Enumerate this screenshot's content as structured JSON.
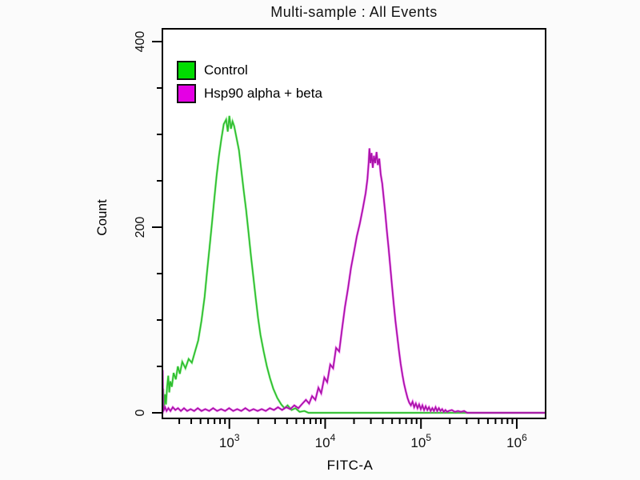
{
  "chart_data": {
    "type": "line",
    "subtype": "flow-cytometry-overlay-histogram",
    "title": "Multi-sample : All Events",
    "xlabel": "FITC-A",
    "ylabel": "Count",
    "x_scale": "log10",
    "x_range": [
      200,
      2000000
    ],
    "y_range": [
      0,
      400
    ],
    "y_major_ticks": [
      0,
      200,
      400
    ],
    "y_minor_step": 50,
    "x_decade_exponents": [
      3,
      4,
      5,
      6
    ],
    "grid": false,
    "legend_position": "top-left-inside",
    "frame_color": "#000000",
    "series": [
      {
        "name": "Control",
        "swatch": "#00DC00",
        "swatch_border": "#111111",
        "stroke": "#2EBD2E",
        "highlight": "#6BEE6B",
        "points": [
          [
            200,
            2
          ],
          [
            204,
            26
          ],
          [
            208,
            6
          ],
          [
            213,
            20
          ],
          [
            218,
            9
          ],
          [
            224,
            28
          ],
          [
            230,
            40
          ],
          [
            236,
            22
          ],
          [
            242,
            34
          ],
          [
            251,
            28
          ],
          [
            262,
            43
          ],
          [
            276,
            36
          ],
          [
            290,
            50
          ],
          [
            304,
            42
          ],
          [
            322,
            55
          ],
          [
            348,
            48
          ],
          [
            376,
            58
          ],
          [
            406,
            54
          ],
          [
            438,
            66
          ],
          [
            473,
            78
          ],
          [
            511,
            99
          ],
          [
            552,
            125
          ],
          [
            584,
            151
          ],
          [
            619,
            177
          ],
          [
            656,
            203
          ],
          [
            694,
            229
          ],
          [
            735,
            255
          ],
          [
            779,
            277
          ],
          [
            825,
            295
          ],
          [
            874,
            311
          ],
          [
            926,
            316
          ],
          [
            962,
            303
          ],
          [
            1000,
            320
          ],
          [
            1040,
            306
          ],
          [
            1080,
            314
          ],
          [
            1122,
            309
          ],
          [
            1189,
            296
          ],
          [
            1259,
            283
          ],
          [
            1334,
            261
          ],
          [
            1413,
            239
          ],
          [
            1496,
            219
          ],
          [
            1585,
            194
          ],
          [
            1679,
            169
          ],
          [
            1778,
            147
          ],
          [
            1884,
            124
          ],
          [
            1995,
            102
          ],
          [
            2113,
            84
          ],
          [
            2282,
            66
          ],
          [
            2464,
            50
          ],
          [
            2661,
            37
          ],
          [
            2873,
            26
          ],
          [
            3162,
            16
          ],
          [
            3481,
            9
          ],
          [
            3758,
            5
          ],
          [
            4058,
            8
          ],
          [
            4467,
            3
          ],
          [
            4898,
            5
          ],
          [
            5413,
            1
          ],
          [
            6070,
            2
          ],
          [
            6700,
            0
          ],
          [
            2000000,
            0
          ]
        ]
      },
      {
        "name": "Hsp90 alpha + beta",
        "swatch": "#E400E4",
        "swatch_border": "#111111",
        "stroke": "#A912A9",
        "highlight": "#EE2EEE",
        "points": [
          [
            200,
            1
          ],
          [
            201,
            46
          ],
          [
            203,
            8
          ],
          [
            207,
            3
          ],
          [
            213,
            6
          ],
          [
            221,
            2
          ],
          [
            231,
            5
          ],
          [
            243,
            2
          ],
          [
            257,
            6
          ],
          [
            273,
            3
          ],
          [
            291,
            5
          ],
          [
            312,
            2
          ],
          [
            336,
            5
          ],
          [
            363,
            2
          ],
          [
            394,
            4
          ],
          [
            429,
            2
          ],
          [
            468,
            5
          ],
          [
            512,
            2
          ],
          [
            561,
            4
          ],
          [
            616,
            2
          ],
          [
            677,
            5
          ],
          [
            745,
            2
          ],
          [
            820,
            4
          ],
          [
            903,
            2
          ],
          [
            995,
            5
          ],
          [
            1096,
            2
          ],
          [
            1208,
            4
          ],
          [
            1332,
            2
          ],
          [
            1469,
            5
          ],
          [
            1620,
            2
          ],
          [
            1787,
            4
          ],
          [
            1971,
            2
          ],
          [
            2174,
            4
          ],
          [
            2398,
            2
          ],
          [
            2645,
            5
          ],
          [
            2918,
            3
          ],
          [
            3219,
            6
          ],
          [
            3551,
            3
          ],
          [
            3917,
            6
          ],
          [
            4321,
            4
          ],
          [
            4767,
            8
          ],
          [
            5258,
            5
          ],
          [
            5800,
            10
          ],
          [
            6300,
            14
          ],
          [
            6800,
            10
          ],
          [
            7300,
            18
          ],
          [
            7900,
            14
          ],
          [
            8500,
            27
          ],
          [
            9100,
            21
          ],
          [
            9800,
            38
          ],
          [
            10500,
            33
          ],
          [
            11300,
            52
          ],
          [
            12100,
            48
          ],
          [
            13000,
            70
          ],
          [
            14000,
            66
          ],
          [
            15000,
            90
          ],
          [
            16100,
            114
          ],
          [
            17300,
            134
          ],
          [
            18600,
            156
          ],
          [
            19900,
            172
          ],
          [
            21400,
            190
          ],
          [
            23000,
            204
          ],
          [
            24700,
            220
          ],
          [
            26500,
            237
          ],
          [
            27600,
            252
          ],
          [
            28400,
            268
          ],
          [
            29000,
            285
          ],
          [
            29700,
            269
          ],
          [
            30500,
            280
          ],
          [
            31400,
            264
          ],
          [
            32300,
            277
          ],
          [
            33300,
            269
          ],
          [
            34400,
            281
          ],
          [
            35500,
            267
          ],
          [
            36700,
            274
          ],
          [
            38000,
            257
          ],
          [
            39400,
            247
          ],
          [
            40900,
            231
          ],
          [
            42500,
            214
          ],
          [
            44200,
            195
          ],
          [
            46000,
            177
          ],
          [
            47900,
            157
          ],
          [
            49900,
            137
          ],
          [
            52000,
            117
          ],
          [
            54200,
            99
          ],
          [
            56500,
            83
          ],
          [
            58900,
            67
          ],
          [
            61400,
            53
          ],
          [
            64000,
            41
          ],
          [
            66700,
            31
          ],
          [
            69500,
            23
          ],
          [
            72400,
            16
          ],
          [
            75400,
            11
          ],
          [
            78500,
            8
          ],
          [
            81700,
            12
          ],
          [
            85000,
            6
          ],
          [
            88400,
            10
          ],
          [
            92000,
            5
          ],
          [
            95700,
            9
          ],
          [
            99600,
            4
          ],
          [
            103600,
            8
          ],
          [
            107800,
            3
          ],
          [
            112100,
            7
          ],
          [
            116600,
            3
          ],
          [
            121300,
            6
          ],
          [
            126200,
            2
          ],
          [
            131300,
            5
          ],
          [
            136600,
            2
          ],
          [
            142100,
            6
          ],
          [
            147800,
            2
          ],
          [
            153800,
            5
          ],
          [
            160000,
            2
          ],
          [
            166400,
            4
          ],
          [
            173100,
            1
          ],
          [
            180100,
            3
          ],
          [
            187400,
            1
          ],
          [
            195000,
            2
          ],
          [
            210000,
            3
          ],
          [
            226000,
            1
          ],
          [
            243000,
            2
          ],
          [
            262000,
            1
          ],
          [
            282000,
            2
          ],
          [
            304000,
            0
          ],
          [
            500000,
            0
          ],
          [
            2000000,
            0
          ]
        ]
      }
    ]
  }
}
